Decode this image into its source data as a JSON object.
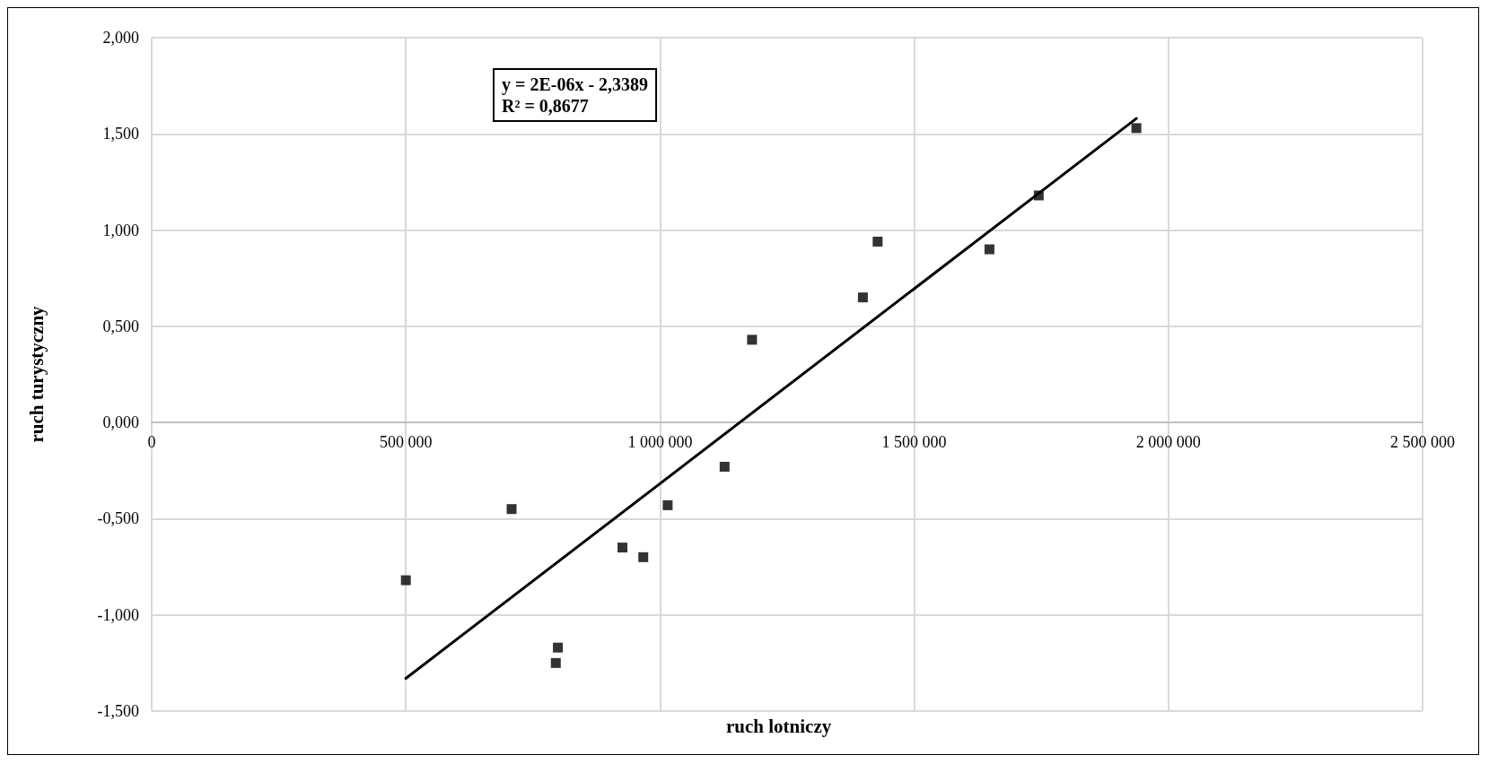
{
  "chart_data": {
    "type": "scatter",
    "xlabel": "ruch lotniczy",
    "ylabel": "ruch turystyczny",
    "annotations": [
      "y = 2E-06x - 2,3389",
      "R² = 0,8677"
    ],
    "xlim": [
      0,
      2500000
    ],
    "ylim": [
      -1.5,
      2
    ],
    "xticks": [
      0,
      {
        "value": 500000,
        "label": "500 000"
      },
      {
        "value": 1000000,
        "label": "1 000 000"
      },
      {
        "value": 1500000,
        "label": "1 500 000"
      },
      {
        "value": 2000000,
        "label": "2 000 000"
      },
      {
        "value": 2500000,
        "label": "2 500 000"
      }
    ],
    "yticks": [
      {
        "value": -1.5,
        "label": "-1,500"
      },
      {
        "value": -1,
        "label": "-1,000"
      },
      {
        "value": -0.5,
        "label": "-0,500"
      },
      {
        "value": 0,
        "label": "0,000"
      },
      {
        "value": 0.5,
        "label": "0,500"
      },
      {
        "value": 1,
        "label": "1,000"
      },
      {
        "value": 1.5,
        "label": "1,500"
      },
      {
        "value": 2,
        "label": "2,000"
      }
    ],
    "grid": true,
    "marker": "square",
    "series": [
      {
        "type": "scatter",
        "color": "#000000",
        "x": [
          500000,
          708000,
          799000,
          795000,
          926000,
          967000,
          1015000,
          1127000,
          1181000,
          1399000,
          1428000,
          1648000,
          1745000,
          1937000
        ],
        "values": [
          -0.82,
          -0.45,
          -1.17,
          -1.25,
          -0.65,
          -0.7,
          -0.43,
          -0.23,
          0.43,
          0.65,
          0.94,
          0.9,
          1.18,
          1.53
        ]
      },
      {
        "type": "line",
        "color": "#000000",
        "line_style": "solid",
        "marker": "none",
        "x": [
          500000,
          1937000
        ],
        "values": [
          -1.33,
          1.58
        ]
      }
    ]
  }
}
